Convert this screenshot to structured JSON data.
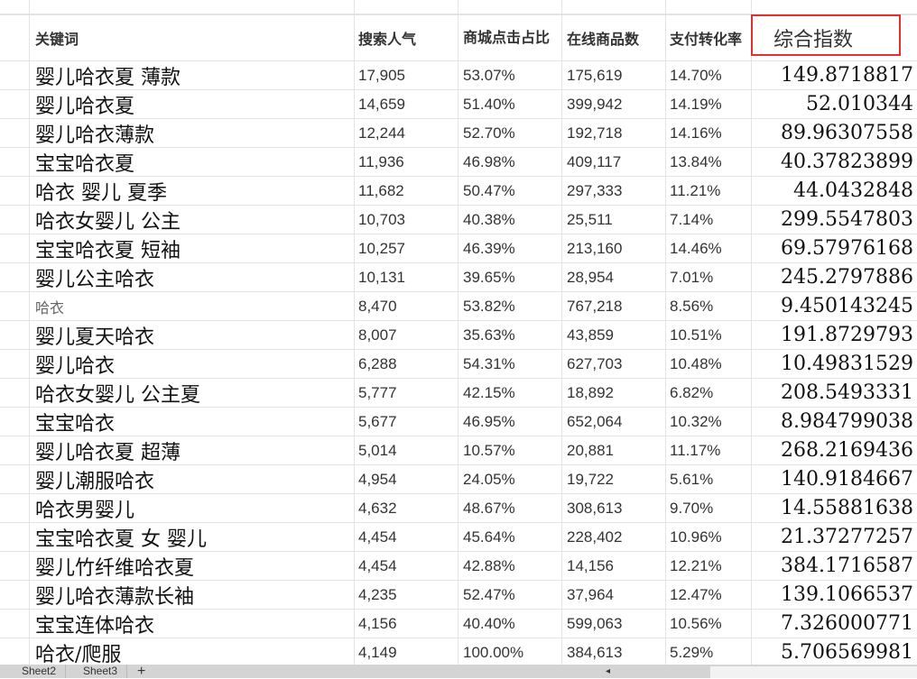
{
  "header": {
    "keyword": "关键词",
    "search": "搜索人气",
    "click": "商城点击占比",
    "online": "在线商品数",
    "conversion": "支付转化率",
    "index": "综合指数"
  },
  "rows": [
    [
      "婴儿哈衣夏 薄款",
      "17,905",
      "53.07%",
      "175,619",
      "14.70%",
      "149.8718817"
    ],
    [
      "婴儿哈衣夏",
      "14,659",
      "51.40%",
      "399,942",
      "14.19%",
      "52.010344"
    ],
    [
      "婴儿哈衣薄款",
      "12,244",
      "52.70%",
      "192,718",
      "14.16%",
      "89.96307558"
    ],
    [
      "宝宝哈衣夏",
      "11,936",
      "46.98%",
      "409,117",
      "13.84%",
      "40.37823899"
    ],
    [
      "哈衣 婴儿 夏季",
      "11,682",
      "50.47%",
      "297,333",
      "11.21%",
      "44.0432848"
    ],
    [
      "哈衣女婴儿 公主",
      "10,703",
      "40.38%",
      "25,511",
      "7.14%",
      "299.5547803"
    ],
    [
      "宝宝哈衣夏 短袖",
      "10,257",
      "46.39%",
      "213,160",
      "14.46%",
      "69.57976168"
    ],
    [
      "婴儿公主哈衣",
      "10,131",
      "39.65%",
      "28,954",
      "7.01%",
      "245.2797886"
    ],
    [
      "哈衣",
      "8,470",
      "53.82%",
      "767,218",
      "8.56%",
      "9.450143245"
    ],
    [
      "婴儿夏天哈衣",
      "8,007",
      "35.63%",
      "43,859",
      "10.51%",
      "191.8729793"
    ],
    [
      "婴儿哈衣",
      "6,288",
      "54.31%",
      "627,703",
      "10.48%",
      "10.49831529"
    ],
    [
      "哈衣女婴儿 公主夏",
      "5,777",
      "42.15%",
      "18,892",
      "6.82%",
      "208.5493331"
    ],
    [
      "宝宝哈衣",
      "5,677",
      "46.95%",
      "652,064",
      "10.32%",
      "8.984799038"
    ],
    [
      "婴儿哈衣夏 超薄",
      "5,014",
      "10.57%",
      "20,881",
      "11.17%",
      "268.2169436"
    ],
    [
      "婴儿潮服哈衣",
      "4,954",
      "24.05%",
      "19,722",
      "5.61%",
      "140.9184667"
    ],
    [
      "哈衣男婴儿",
      "4,632",
      "48.67%",
      "308,613",
      "9.70%",
      "14.55881638"
    ],
    [
      "宝宝哈衣夏 女 婴儿",
      "4,454",
      "45.64%",
      "228,402",
      "10.96%",
      "21.37277257"
    ],
    [
      "婴儿竹纤维哈衣夏",
      "4,454",
      "42.88%",
      "14,156",
      "12.21%",
      "384.1716587"
    ],
    [
      "婴儿哈衣薄款长袖",
      "4,235",
      "52.47%",
      "37,964",
      "12.47%",
      "139.1066537"
    ],
    [
      "宝宝连体哈衣",
      "4,156",
      "40.40%",
      "599,063",
      "10.56%",
      "7.326000771"
    ],
    [
      "哈衣/爬服",
      "4,149",
      "100.00%",
      "384,613",
      "5.29%",
      "5.706569981"
    ]
  ],
  "sheet_tabs": [
    "Sheet2",
    "Sheet3"
  ],
  "add_sheet": "+",
  "highlight_color": "#e03030"
}
